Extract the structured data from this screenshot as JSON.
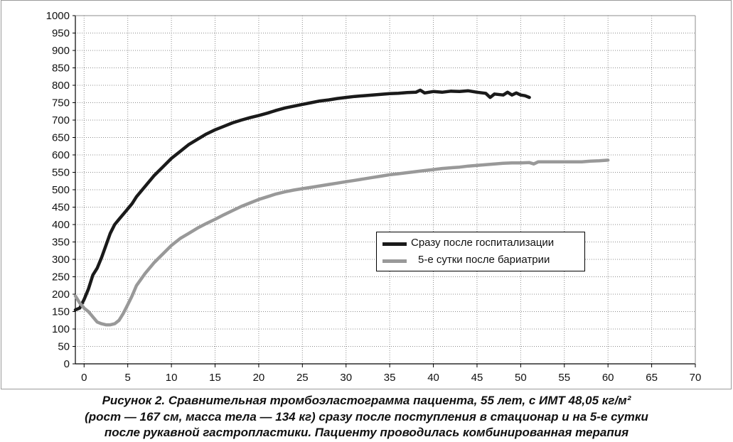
{
  "chart_data": {
    "type": "line",
    "xlim": [
      -1,
      70
    ],
    "ylim": [
      0,
      1000
    ],
    "x_ticks": [
      0,
      5,
      10,
      15,
      20,
      25,
      30,
      35,
      40,
      45,
      50,
      55,
      60,
      65,
      70
    ],
    "y_ticks": [
      0,
      50,
      100,
      150,
      200,
      250,
      300,
      350,
      400,
      450,
      500,
      550,
      600,
      650,
      700,
      750,
      800,
      850,
      900,
      950,
      1000
    ],
    "grid": "both",
    "legend_position": "center-right",
    "series": [
      {
        "name": "Сразу после госпитализации",
        "color": "#1a1a1a",
        "points": [
          [
            -1,
            155
          ],
          [
            -0.5,
            160
          ],
          [
            0,
            185
          ],
          [
            0.5,
            215
          ],
          [
            1,
            255
          ],
          [
            1.5,
            275
          ],
          [
            2,
            305
          ],
          [
            2.5,
            340
          ],
          [
            3,
            375
          ],
          [
            3.5,
            400
          ],
          [
            4,
            415
          ],
          [
            4.5,
            430
          ],
          [
            5,
            445
          ],
          [
            5.5,
            460
          ],
          [
            6,
            480
          ],
          [
            7,
            510
          ],
          [
            8,
            540
          ],
          [
            9,
            565
          ],
          [
            10,
            590
          ],
          [
            11,
            610
          ],
          [
            12,
            630
          ],
          [
            13,
            645
          ],
          [
            14,
            660
          ],
          [
            15,
            672
          ],
          [
            16,
            682
          ],
          [
            17,
            692
          ],
          [
            18,
            700
          ],
          [
            19,
            707
          ],
          [
            20,
            713
          ],
          [
            21,
            720
          ],
          [
            22,
            728
          ],
          [
            23,
            735
          ],
          [
            24,
            740
          ],
          [
            25,
            745
          ],
          [
            26,
            750
          ],
          [
            27,
            755
          ],
          [
            28,
            758
          ],
          [
            29,
            762
          ],
          [
            30,
            765
          ],
          [
            31,
            768
          ],
          [
            32,
            770
          ],
          [
            33,
            772
          ],
          [
            34,
            774
          ],
          [
            35,
            776
          ],
          [
            36,
            777
          ],
          [
            37,
            779
          ],
          [
            38,
            780
          ],
          [
            38.5,
            786
          ],
          [
            39,
            778
          ],
          [
            40,
            782
          ],
          [
            41,
            780
          ],
          [
            42,
            783
          ],
          [
            43,
            782
          ],
          [
            44,
            784
          ],
          [
            45,
            780
          ],
          [
            46,
            777
          ],
          [
            46.5,
            765
          ],
          [
            47,
            775
          ],
          [
            48,
            772
          ],
          [
            48.5,
            780
          ],
          [
            49,
            772
          ],
          [
            49.5,
            778
          ],
          [
            50,
            772
          ],
          [
            50.5,
            770
          ],
          [
            51,
            765
          ]
        ]
      },
      {
        "name": "5-е сутки после бариатрии",
        "color": "#999999",
        "points": [
          [
            -1,
            195
          ],
          [
            -0.5,
            175
          ],
          [
            0,
            160
          ],
          [
            0.5,
            150
          ],
          [
            1,
            135
          ],
          [
            1.5,
            120
          ],
          [
            2,
            115
          ],
          [
            2.5,
            112
          ],
          [
            3,
            112
          ],
          [
            3.5,
            115
          ],
          [
            4,
            125
          ],
          [
            4.5,
            145
          ],
          [
            5,
            170
          ],
          [
            5.5,
            195
          ],
          [
            6,
            225
          ],
          [
            7,
            260
          ],
          [
            8,
            290
          ],
          [
            9,
            315
          ],
          [
            10,
            340
          ],
          [
            11,
            360
          ],
          [
            12,
            375
          ],
          [
            13,
            390
          ],
          [
            14,
            403
          ],
          [
            15,
            415
          ],
          [
            16,
            428
          ],
          [
            17,
            440
          ],
          [
            18,
            452
          ],
          [
            19,
            462
          ],
          [
            20,
            472
          ],
          [
            21,
            480
          ],
          [
            22,
            488
          ],
          [
            23,
            494
          ],
          [
            24,
            499
          ],
          [
            25,
            503
          ],
          [
            26,
            507
          ],
          [
            27,
            511
          ],
          [
            28,
            515
          ],
          [
            29,
            519
          ],
          [
            30,
            523
          ],
          [
            31,
            527
          ],
          [
            32,
            531
          ],
          [
            33,
            535
          ],
          [
            34,
            539
          ],
          [
            35,
            543
          ],
          [
            36,
            546
          ],
          [
            37,
            549
          ],
          [
            38,
            552
          ],
          [
            39,
            555
          ],
          [
            40,
            558
          ],
          [
            41,
            561
          ],
          [
            42,
            563
          ],
          [
            43,
            565
          ],
          [
            44,
            568
          ],
          [
            45,
            570
          ],
          [
            46,
            572
          ],
          [
            47,
            574
          ],
          [
            48,
            576
          ],
          [
            49,
            577
          ],
          [
            50,
            577
          ],
          [
            51,
            578
          ],
          [
            51.5,
            574
          ],
          [
            52,
            580
          ],
          [
            53,
            580
          ],
          [
            55,
            580
          ],
          [
            57,
            580
          ],
          [
            58,
            582
          ],
          [
            59,
            583
          ],
          [
            60,
            585
          ]
        ]
      }
    ]
  },
  "caption": {
    "line1": "Рисунок 2.  Сравнительная тромбоэластограмма пациента, 55 лет, с ИМТ 48,05 кг/м²",
    "line2": "(рост — 167 см, масса тела — 134 кг) сразу после поступления в стационар и на 5-е сутки",
    "line3": "после рукавной гастропластики. Пациенту проводилась комбинированная терапия"
  }
}
